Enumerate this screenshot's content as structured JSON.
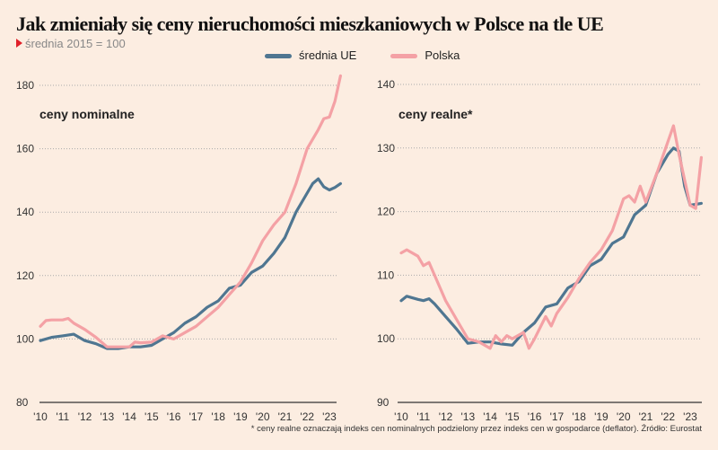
{
  "title": "Jak zmieniały się ceny nieruchomości mieszkaniowych w Polsce na tle UE",
  "subtitle": "średnia 2015 = 100",
  "footnote": "* ceny realne oznaczają indeks cen nominalnych podzielony przez indeks cen w gospodarce (deflator). Źródło: Eurostat",
  "legend": [
    {
      "name": "średnia UE",
      "color": "#4f7691"
    },
    {
      "name": "Polska",
      "color": "#f4a1a5"
    }
  ],
  "chart_data": [
    {
      "type": "line",
      "title": "ceny nominalne",
      "xlim": [
        2010,
        2023.6
      ],
      "ylim": [
        80,
        180
      ],
      "yticks": [
        80,
        100,
        120,
        140,
        160,
        180
      ],
      "xticks": [
        "'10",
        "'11",
        "'12",
        "'13",
        "'14",
        "'15",
        "'16",
        "'17",
        "'18",
        "'19",
        "'20",
        "'21",
        "'22",
        "'23"
      ],
      "grid": "horizontal dotted",
      "series": [
        {
          "name": "średnia UE",
          "color": "#4f7691",
          "x": [
            2010,
            2010.5,
            2011,
            2011.5,
            2012,
            2012.5,
            2013,
            2013.5,
            2014,
            2014.5,
            2015,
            2015.5,
            2016,
            2016.5,
            2017,
            2017.5,
            2018,
            2018.5,
            2019,
            2019.5,
            2020,
            2020.5,
            2021,
            2021.5,
            2022,
            2022.25,
            2022.5,
            2022.75,
            2023,
            2023.25,
            2023.5
          ],
          "y": [
            99.5,
            100.5,
            101,
            101.5,
            99.5,
            98.5,
            97,
            97,
            97.5,
            97.5,
            98,
            100,
            102,
            105,
            107,
            110,
            112,
            116,
            117,
            121,
            123,
            127,
            132,
            140,
            146,
            149,
            150.5,
            148,
            147,
            147.8,
            149
          ]
        },
        {
          "name": "Polska",
          "color": "#f4a1a5",
          "x": [
            2010,
            2010.25,
            2010.5,
            2011,
            2011.25,
            2011.5,
            2012,
            2012.5,
            2013,
            2013.5,
            2014,
            2014.25,
            2014.5,
            2015,
            2015.5,
            2016,
            2016.5,
            2017,
            2017.5,
            2018,
            2018.5,
            2019,
            2019.5,
            2020,
            2020.5,
            2021,
            2021.5,
            2022,
            2022.5,
            2022.75,
            2023,
            2023.25,
            2023.5
          ],
          "y": [
            104,
            105.8,
            106,
            106,
            106.5,
            105,
            103,
            100.5,
            97.5,
            97.5,
            97.5,
            99,
            98.8,
            99,
            101,
            100,
            102,
            104,
            107,
            110,
            114,
            118,
            124,
            131,
            136,
            140,
            149,
            160,
            166,
            169.5,
            170,
            175,
            183
          ]
        }
      ]
    },
    {
      "type": "line",
      "title": "ceny realne*",
      "xlim": [
        2010,
        2023.6
      ],
      "ylim": [
        90,
        140
      ],
      "yticks": [
        90,
        100,
        110,
        120,
        130,
        140
      ],
      "xticks": [
        "'10",
        "'11",
        "'12",
        "'13",
        "'14",
        "'15",
        "'16",
        "'17",
        "'18",
        "'19",
        "'20",
        "'21",
        "'22",
        "'23"
      ],
      "grid": "horizontal dotted",
      "series": [
        {
          "name": "średnia UE",
          "color": "#4f7691",
          "x": [
            2010,
            2010.25,
            2010.75,
            2011,
            2011.25,
            2011.5,
            2012,
            2012.5,
            2013,
            2013.5,
            2014,
            2014.5,
            2015,
            2015.5,
            2016,
            2016.5,
            2017,
            2017.5,
            2018,
            2018.5,
            2019,
            2019.5,
            2020,
            2020.5,
            2021,
            2021.5,
            2022,
            2022.25,
            2022.5,
            2022.75,
            2023,
            2023.5
          ],
          "y": [
            106,
            106.7,
            106.2,
            106,
            106.3,
            105.5,
            103.5,
            101.5,
            99.3,
            99.5,
            99.5,
            99.2,
            99,
            101,
            102.5,
            105,
            105.5,
            108,
            109,
            111.5,
            112.5,
            115,
            116,
            119.5,
            121,
            126,
            129,
            130,
            129.5,
            124,
            121,
            121.3
          ]
        },
        {
          "name": "Polska",
          "color": "#f4a1a5",
          "x": [
            2010,
            2010.25,
            2010.75,
            2011,
            2011.25,
            2011.5,
            2012,
            2012.5,
            2013,
            2013.5,
            2014,
            2014.25,
            2014.5,
            2014.75,
            2015,
            2015.5,
            2015.75,
            2016,
            2016.5,
            2016.75,
            2017,
            2017.5,
            2018,
            2018.5,
            2019,
            2019.5,
            2020,
            2020.25,
            2020.5,
            2020.75,
            2021,
            2021.5,
            2022,
            2022.25,
            2022.5,
            2022.75,
            2023,
            2023.25,
            2023.5
          ],
          "y": [
            113.5,
            114,
            113,
            111.5,
            112,
            110,
            106,
            103,
            100,
            99.5,
            98.5,
            100.5,
            99.5,
            100.5,
            100,
            101,
            98.5,
            100,
            103.5,
            102,
            104,
            106.5,
            109.5,
            112,
            114,
            117,
            122,
            122.5,
            121.5,
            124,
            121.5,
            126,
            131,
            133.5,
            129,
            125,
            121,
            120.5,
            128.5
          ]
        }
      ]
    }
  ]
}
